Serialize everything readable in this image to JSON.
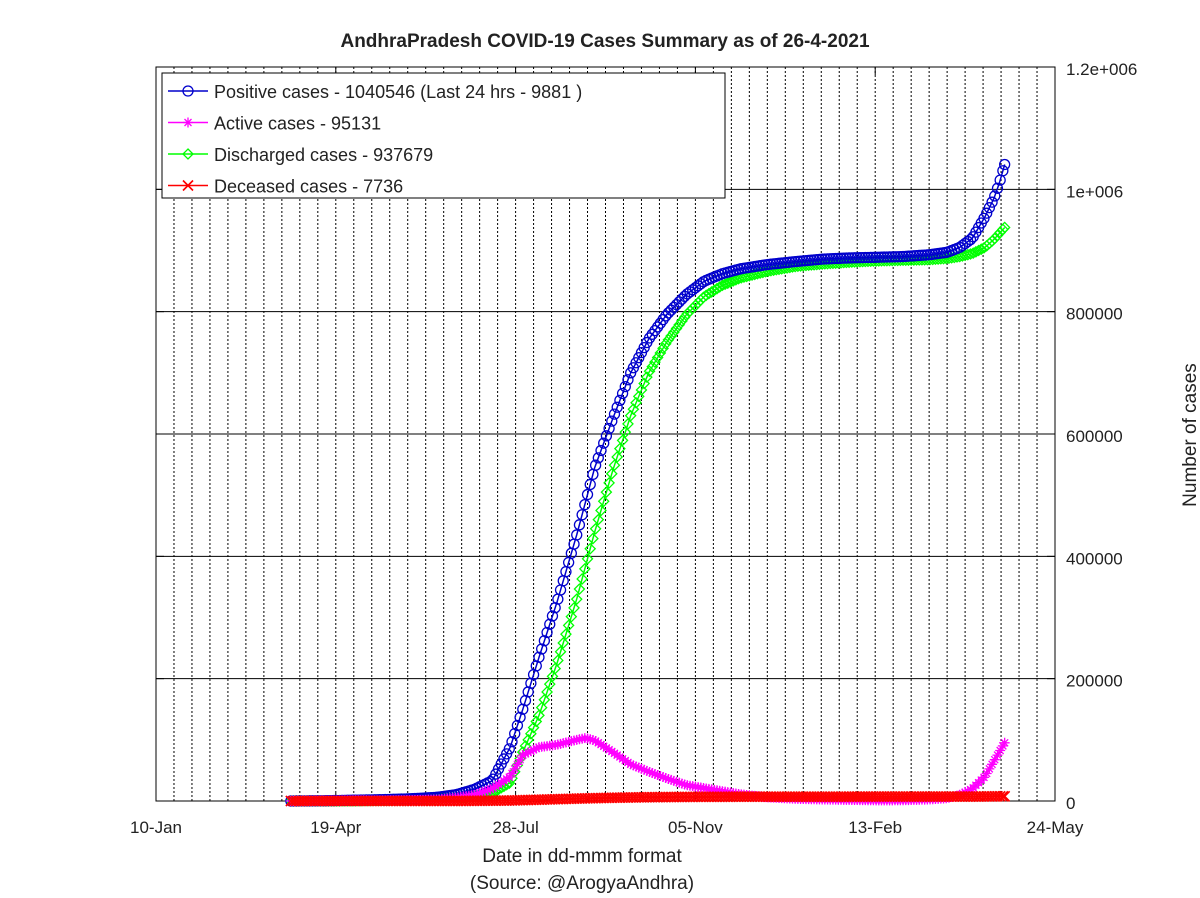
{
  "chart_data": {
    "type": "line",
    "title": "AndhraPradesh COVID-19 Cases Summary as of 26-4-2021",
    "xlabel": "Date in dd-mmm format",
    "source": "(Source: @ArogyaAndhra)",
    "ylabel": "Number of cases",
    "x_axis": {
      "type": "date",
      "domain": [
        "2020-01-10",
        "2021-05-24"
      ],
      "ticks": [
        {
          "date": "2020-01-10",
          "label": "10-Jan"
        },
        {
          "date": "2020-04-19",
          "label": "19-Apr"
        },
        {
          "date": "2020-07-28",
          "label": "28-Jul"
        },
        {
          "date": "2020-11-05",
          "label": "05-Nov"
        },
        {
          "date": "2021-02-13",
          "label": "13-Feb"
        },
        {
          "date": "2021-05-24",
          "label": "24-May"
        }
      ],
      "minor_grid_every_days": 10
    },
    "y_axis": {
      "position": "right",
      "ylim": [
        0,
        1200000
      ],
      "ticks": [
        {
          "value": 0,
          "label": "0"
        },
        {
          "value": 200000,
          "label": "200000"
        },
        {
          "value": 400000,
          "label": "400000"
        },
        {
          "value": 600000,
          "label": "600000"
        },
        {
          "value": 800000,
          "label": "800000"
        },
        {
          "value": 1000000,
          "label": "1e+006"
        },
        {
          "value": 1200000,
          "label": "1.2e+006"
        }
      ]
    },
    "grid": true,
    "legend_position": "top-left",
    "series": [
      {
        "name": "Positive cases - 1040546 (Last 24 hrs - 9881 )",
        "color": "#0000cc",
        "marker": "circle",
        "points": [
          [
            "2020-03-25",
            8
          ],
          [
            "2020-04-15",
            530
          ],
          [
            "2020-05-01",
            1460
          ],
          [
            "2020-05-15",
            2200
          ],
          [
            "2020-06-01",
            3800
          ],
          [
            "2020-06-15",
            6200
          ],
          [
            "2020-06-25",
            10300
          ],
          [
            "2020-07-05",
            19000
          ],
          [
            "2020-07-15",
            33000
          ],
          [
            "2020-07-25",
            88000
          ],
          [
            "2020-08-01",
            150000
          ],
          [
            "2020-08-10",
            235000
          ],
          [
            "2020-08-20",
            325000
          ],
          [
            "2020-08-31",
            435000
          ],
          [
            "2020-09-10",
            545000
          ],
          [
            "2020-09-20",
            625000
          ],
          [
            "2020-09-30",
            700000
          ],
          [
            "2020-10-10",
            755000
          ],
          [
            "2020-10-20",
            795000
          ],
          [
            "2020-10-31",
            828000
          ],
          [
            "2020-11-10",
            850000
          ],
          [
            "2020-11-20",
            862000
          ],
          [
            "2020-11-30",
            870000
          ],
          [
            "2020-12-15",
            877000
          ],
          [
            "2020-12-31",
            882000
          ],
          [
            "2021-01-15",
            886000
          ],
          [
            "2021-01-31",
            888000
          ],
          [
            "2021-02-15",
            889000
          ],
          [
            "2021-02-28",
            890000
          ],
          [
            "2021-03-15",
            893000
          ],
          [
            "2021-03-25",
            897000
          ],
          [
            "2021-04-01",
            905000
          ],
          [
            "2021-04-08",
            920000
          ],
          [
            "2021-04-15",
            955000
          ],
          [
            "2021-04-20",
            985000
          ],
          [
            "2021-04-23",
            1010000
          ],
          [
            "2021-04-26",
            1040546
          ]
        ]
      },
      {
        "name": "Active cases - 95131",
        "color": "#ff00ff",
        "marker": "star",
        "points": [
          [
            "2020-03-25",
            8
          ],
          [
            "2020-04-15",
            500
          ],
          [
            "2020-05-01",
            1000
          ],
          [
            "2020-05-15",
            800
          ],
          [
            "2020-06-01",
            1500
          ],
          [
            "2020-06-15",
            2600
          ],
          [
            "2020-06-25",
            5500
          ],
          [
            "2020-07-05",
            10000
          ],
          [
            "2020-07-15",
            20000
          ],
          [
            "2020-07-25",
            40000
          ],
          [
            "2020-08-01",
            75000
          ],
          [
            "2020-08-10",
            88000
          ],
          [
            "2020-08-20",
            92000
          ],
          [
            "2020-08-31",
            100000
          ],
          [
            "2020-09-05",
            103000
          ],
          [
            "2020-09-10",
            99000
          ],
          [
            "2020-09-20",
            80000
          ],
          [
            "2020-09-30",
            60000
          ],
          [
            "2020-10-10",
            48000
          ],
          [
            "2020-10-20",
            37000
          ],
          [
            "2020-10-31",
            26000
          ],
          [
            "2020-11-10",
            21000
          ],
          [
            "2020-11-20",
            16000
          ],
          [
            "2020-11-30",
            11000
          ],
          [
            "2020-12-15",
            6000
          ],
          [
            "2020-12-31",
            3500
          ],
          [
            "2021-01-15",
            2500
          ],
          [
            "2021-01-31",
            1700
          ],
          [
            "2021-02-15",
            1000
          ],
          [
            "2021-02-28",
            1200
          ],
          [
            "2021-03-15",
            2500
          ],
          [
            "2021-03-25",
            4500
          ],
          [
            "2021-04-01",
            10000
          ],
          [
            "2021-04-08",
            20000
          ],
          [
            "2021-04-15",
            40000
          ],
          [
            "2021-04-20",
            65000
          ],
          [
            "2021-04-26",
            95131
          ]
        ]
      },
      {
        "name": "Discharged cases - 937679",
        "color": "#00ff00",
        "marker": "diamond",
        "points": [
          [
            "2020-03-25",
            0
          ],
          [
            "2020-04-15",
            30
          ],
          [
            "2020-05-01",
            400
          ],
          [
            "2020-05-15",
            1300
          ],
          [
            "2020-06-01",
            2300
          ],
          [
            "2020-06-15",
            3500
          ],
          [
            "2020-06-25",
            4700
          ],
          [
            "2020-07-05",
            8500
          ],
          [
            "2020-07-15",
            13000
          ],
          [
            "2020-07-25",
            30000
          ],
          [
            "2020-08-01",
            80000
          ],
          [
            "2020-08-10",
            140000
          ],
          [
            "2020-08-20",
            225000
          ],
          [
            "2020-08-31",
            330000
          ],
          [
            "2020-09-10",
            440000
          ],
          [
            "2020-09-20",
            540000
          ],
          [
            "2020-09-30",
            630000
          ],
          [
            "2020-10-10",
            700000
          ],
          [
            "2020-10-20",
            750000
          ],
          [
            "2020-10-31",
            795000
          ],
          [
            "2020-11-10",
            825000
          ],
          [
            "2020-11-20",
            843000
          ],
          [
            "2020-11-30",
            855000
          ],
          [
            "2020-12-15",
            866000
          ],
          [
            "2020-12-31",
            874000
          ],
          [
            "2021-01-15",
            878000
          ],
          [
            "2021-01-31",
            881000
          ],
          [
            "2021-02-15",
            883000
          ],
          [
            "2021-02-28",
            884000
          ],
          [
            "2021-03-15",
            885000
          ],
          [
            "2021-03-25",
            887000
          ],
          [
            "2021-04-01",
            890000
          ],
          [
            "2021-04-08",
            895000
          ],
          [
            "2021-04-15",
            905000
          ],
          [
            "2021-04-20",
            918000
          ],
          [
            "2021-04-26",
            937679
          ]
        ]
      },
      {
        "name": "Deceased cases - 7736",
        "color": "#ff0000",
        "marker": "x",
        "points": [
          [
            "2020-03-25",
            0
          ],
          [
            "2020-05-01",
            30
          ],
          [
            "2020-06-01",
            70
          ],
          [
            "2020-07-01",
            200
          ],
          [
            "2020-07-25",
            800
          ],
          [
            "2020-08-10",
            2100
          ],
          [
            "2020-08-31",
            3900
          ],
          [
            "2020-09-20",
            5300
          ],
          [
            "2020-10-10",
            6200
          ],
          [
            "2020-10-31",
            6700
          ],
          [
            "2020-11-30",
            7000
          ],
          [
            "2020-12-31",
            7100
          ],
          [
            "2021-01-31",
            7150
          ],
          [
            "2021-02-28",
            7170
          ],
          [
            "2021-03-31",
            7220
          ],
          [
            "2021-04-15",
            7400
          ],
          [
            "2021-04-26",
            7736
          ]
        ]
      }
    ]
  }
}
